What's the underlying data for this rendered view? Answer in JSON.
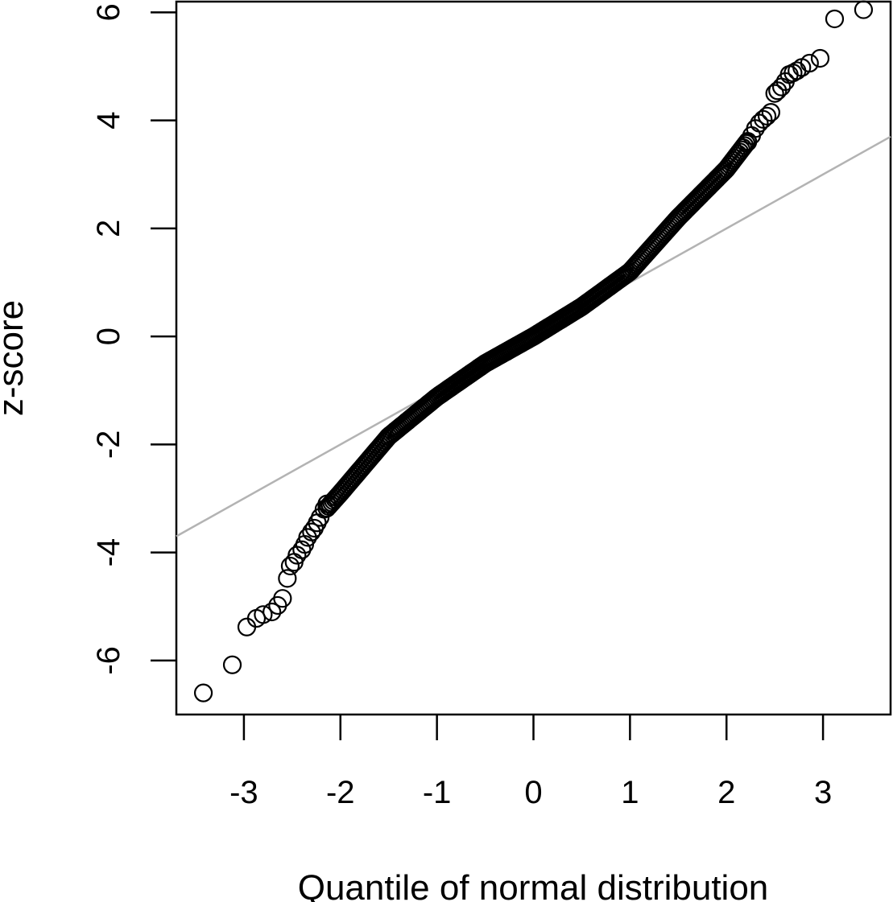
{
  "chart_data": {
    "type": "scatter",
    "title": "",
    "xlabel": "Quantile of normal distribution",
    "ylabel": "z-score",
    "xlim": [
      -3.7,
      3.7
    ],
    "ylim": [
      -7.0,
      6.2
    ],
    "xticks": [
      -3,
      -2,
      -1,
      0,
      1,
      2,
      3
    ],
    "xtick_labels": [
      "-3",
      "-2",
      "-1",
      "0",
      "1",
      "2",
      "3"
    ],
    "yticks": [
      -6,
      -4,
      -2,
      0,
      2,
      4,
      6
    ],
    "ytick_labels": [
      "-6",
      "-4",
      "-2",
      "0",
      "2",
      "4",
      "6"
    ],
    "grid": false,
    "marker": "open-circle",
    "reference_line": {
      "intercept": 0,
      "slope": 1,
      "color": "#b3b3b3"
    },
    "curve_knots": [
      [
        -3.42,
        -6.6
      ],
      [
        -3.1,
        -6.1
      ],
      [
        -2.97,
        -5.4
      ],
      [
        -2.5,
        -4.3
      ],
      [
        -2.2,
        -3.3
      ],
      [
        -2.0,
        -2.9
      ],
      [
        -1.5,
        -1.85
      ],
      [
        -1.0,
        -1.12
      ],
      [
        -0.5,
        -0.5
      ],
      [
        0.0,
        0.0
      ],
      [
        0.5,
        0.55
      ],
      [
        1.0,
        1.2
      ],
      [
        1.5,
        2.2
      ],
      [
        2.0,
        3.1
      ],
      [
        2.3,
        3.8
      ],
      [
        2.6,
        4.6
      ],
      [
        2.98,
        5.15
      ],
      [
        3.12,
        5.88
      ],
      [
        3.42,
        6.05
      ]
    ],
    "points": [
      [
        -3.42,
        -6.6
      ],
      [
        -3.12,
        -6.08
      ],
      [
        -2.97,
        -5.38
      ],
      [
        -2.87,
        -5.22
      ],
      [
        -2.8,
        -5.15
      ],
      [
        -2.71,
        -5.1
      ],
      [
        -2.65,
        -4.98
      ],
      [
        -2.6,
        -4.85
      ],
      [
        -2.55,
        -4.48
      ],
      [
        -2.52,
        -4.25
      ],
      [
        -2.48,
        -4.18
      ],
      [
        -2.45,
        -4.05
      ],
      [
        -2.4,
        -3.95
      ],
      [
        -2.37,
        -3.85
      ],
      [
        -2.34,
        -3.72
      ],
      [
        -2.3,
        -3.62
      ],
      [
        -2.27,
        -3.55
      ],
      [
        -2.24,
        -3.45
      ],
      [
        -2.21,
        -3.35
      ],
      [
        -2.17,
        -3.2
      ],
      [
        -2.14,
        -3.1
      ],
      [
        2.22,
        3.6
      ],
      [
        2.26,
        3.72
      ],
      [
        2.3,
        3.85
      ],
      [
        2.34,
        3.95
      ],
      [
        2.38,
        4.02
      ],
      [
        2.42,
        4.08
      ],
      [
        2.46,
        4.15
      ],
      [
        2.5,
        4.5
      ],
      [
        2.53,
        4.55
      ],
      [
        2.57,
        4.62
      ],
      [
        2.61,
        4.72
      ],
      [
        2.65,
        4.85
      ],
      [
        2.69,
        4.88
      ],
      [
        2.73,
        4.92
      ],
      [
        2.78,
        4.98
      ],
      [
        2.86,
        5.06
      ],
      [
        2.97,
        5.15
      ],
      [
        3.12,
        5.88
      ],
      [
        3.42,
        6.05
      ]
    ],
    "dense_point_range": [
      -2.14,
      2.22
    ]
  }
}
